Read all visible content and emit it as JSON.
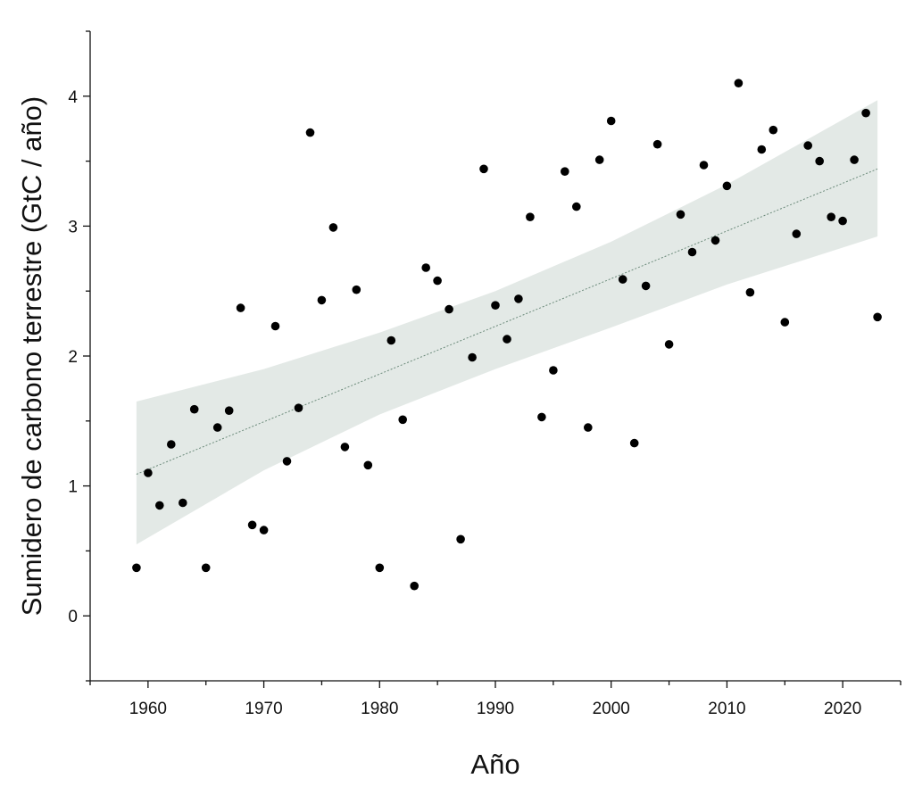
{
  "chart_data": {
    "type": "scatter",
    "xlabel": "Año",
    "ylabel": "Sumidero de carbono terrestre (GtC / año)",
    "xlim": [
      1955,
      2025
    ],
    "ylim": [
      -0.5,
      4.5
    ],
    "xticks": [
      1960,
      1970,
      1980,
      1990,
      2000,
      2010,
      2020
    ],
    "yticks": [
      0,
      1,
      2,
      3,
      4
    ],
    "grid": false,
    "legend": "none",
    "colors": {
      "points": "#000000",
      "band": "#e3e9e6",
      "trend": "#6b8a7a",
      "axis": "#111111"
    },
    "trend": {
      "x": [
        1959,
        2023
      ],
      "y": [
        1.09,
        3.44
      ]
    },
    "confidence_band": {
      "x": [
        1959,
        1970,
        1980,
        1990,
        2000,
        2010,
        2023
      ],
      "lower": [
        0.55,
        1.12,
        1.55,
        1.9,
        2.22,
        2.55,
        2.92
      ],
      "upper": [
        1.65,
        1.9,
        2.18,
        2.5,
        2.88,
        3.32,
        3.97
      ]
    },
    "series": [
      {
        "x": [
          1959,
          1960,
          1961,
          1962,
          1963,
          1964,
          1965,
          1966,
          1967,
          1968,
          1969,
          1970,
          1971,
          1972,
          1973,
          1974,
          1975,
          1976,
          1977,
          1978,
          1979,
          1980,
          1981,
          1982,
          1983,
          1984,
          1985,
          1986,
          1987,
          1988,
          1989,
          1990,
          1991,
          1992,
          1993,
          1994,
          1995,
          1996,
          1997,
          1998,
          1999,
          2000,
          2001,
          2002,
          2003,
          2004,
          2005,
          2006,
          2007,
          2008,
          2009,
          2010,
          2011,
          2012,
          2013,
          2014,
          2015,
          2016,
          2017,
          2018,
          2019,
          2020,
          2021,
          2022,
          2023
        ],
        "y": [
          0.37,
          1.1,
          0.85,
          1.32,
          0.87,
          1.59,
          0.37,
          1.45,
          1.58,
          2.37,
          0.7,
          0.66,
          2.23,
          1.19,
          1.6,
          3.72,
          2.43,
          2.99,
          1.3,
          2.51,
          1.16,
          0.37,
          2.12,
          1.51,
          0.23,
          2.68,
          2.58,
          2.36,
          0.59,
          1.99,
          3.44,
          2.39,
          2.13,
          2.44,
          3.07,
          1.53,
          1.89,
          3.42,
          3.15,
          1.45,
          3.51,
          3.81,
          2.59,
          1.33,
          2.54,
          3.63,
          2.09,
          3.09,
          2.8,
          3.47,
          2.89,
          3.31,
          4.1,
          2.49,
          3.59,
          3.74,
          2.26,
          2.94,
          3.62,
          3.5,
          3.07,
          3.04,
          3.51,
          3.87,
          2.3
        ]
      }
    ]
  }
}
